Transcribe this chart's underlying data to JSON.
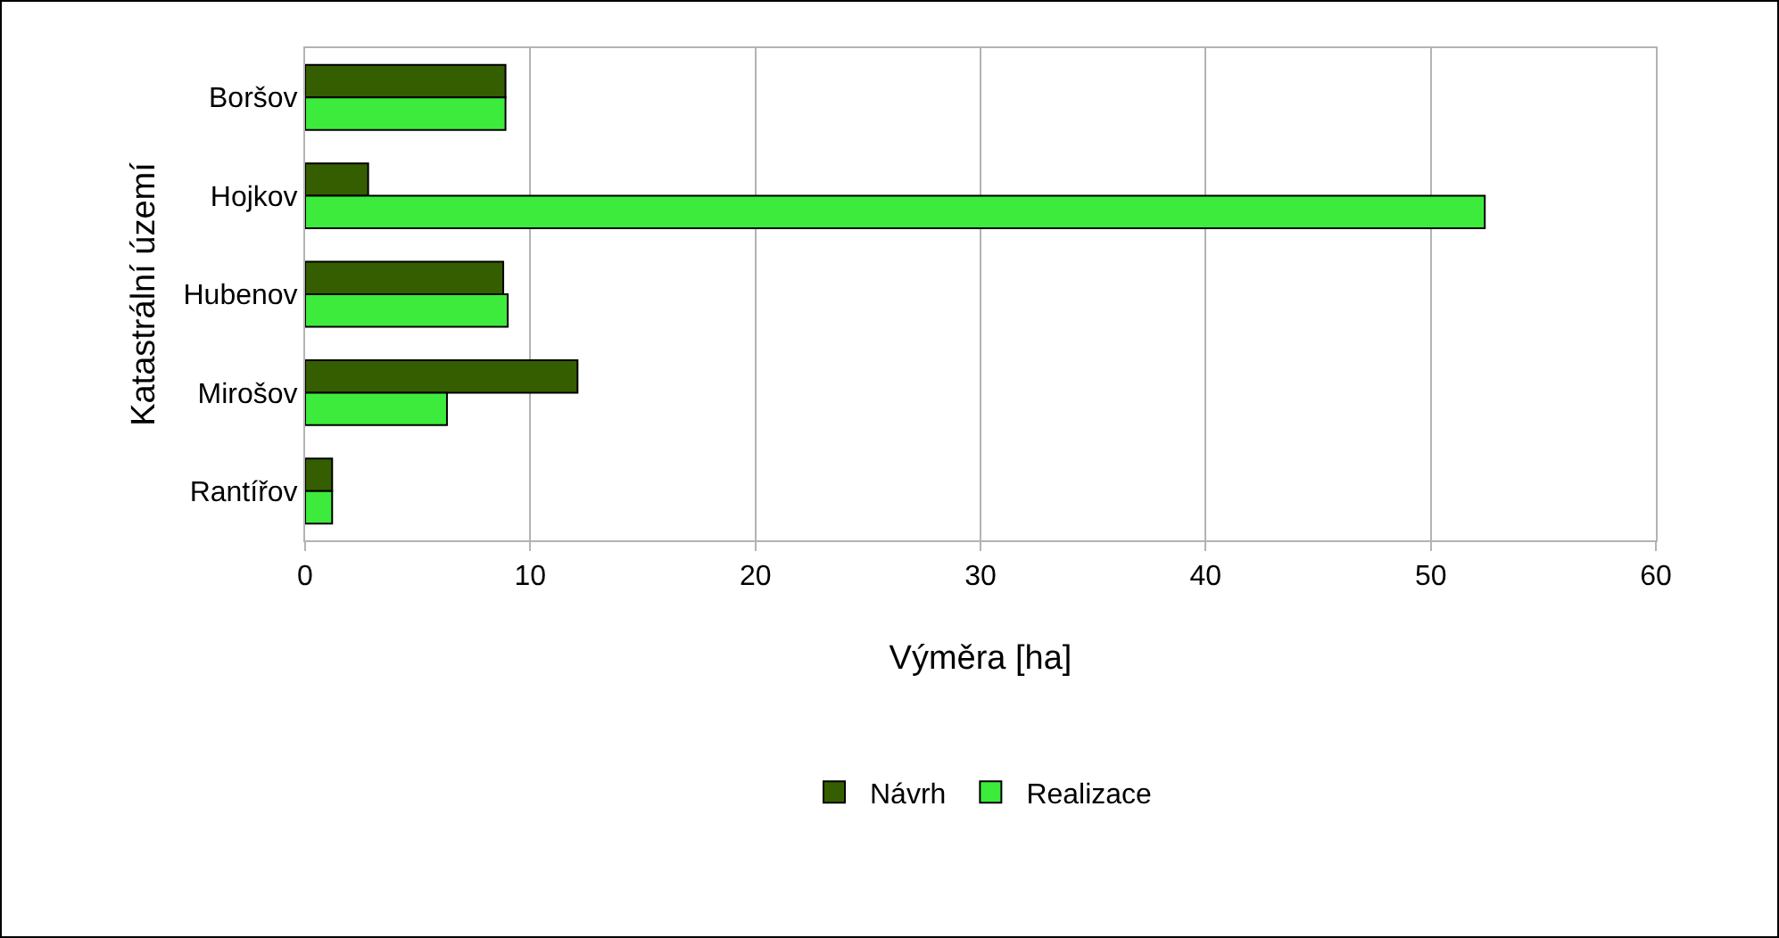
{
  "chart_data": {
    "type": "bar",
    "orientation": "horizontal",
    "xlabel": "Výměra [ha]",
    "ylabel": "Katastrální území",
    "categories": [
      "Boršov",
      "Hojkov",
      "Hubenov",
      "Mirošov",
      "Rantířov"
    ],
    "series": [
      {
        "name": "Návrh",
        "color": "#355e00",
        "values": [
          8.9,
          2.8,
          8.8,
          12.1,
          1.2
        ]
      },
      {
        "name": "Realizace",
        "color": "#3deb3d",
        "values": [
          8.9,
          52.4,
          9.0,
          6.3,
          1.2
        ]
      }
    ],
    "xlim": [
      0,
      60
    ],
    "xticks": [
      0,
      10,
      20,
      30,
      40,
      50,
      60
    ],
    "grid": "x",
    "legend": "bottom"
  }
}
